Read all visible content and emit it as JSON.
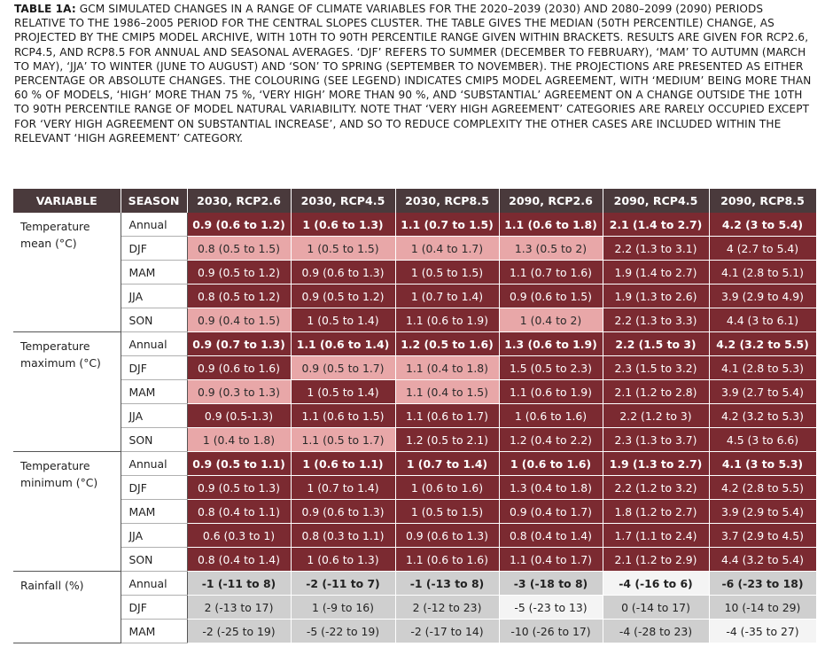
{
  "caption": {
    "label": "TABLE 1A:",
    "text": " GCM SIMULATED CHANGES IN A RANGE OF CLIMATE VARIABLES FOR THE 2020–2039 (2030) AND 2080–2099 (2090) PERIODS RELATIVE TO THE 1986–2005 PERIOD FOR THE CENTRAL SLOPES CLUSTER. THE TABLE GIVES THE MEDIAN (50TH PERCENTILE) CHANGE, AS PROJECTED BY THE CMIP5 MODEL ARCHIVE, WITH 10TH TO 90TH PERCENTILE RANGE GIVEN WITHIN BRACKETS. RESULTS ARE GIVEN FOR RCP2.6, RCP4.5, AND RCP8.5 FOR ANNUAL AND SEASONAL AVERAGES. ‘DJF’ REFERS TO SUMMER (DECEMBER TO FEBRUARY), ‘MAM’ TO AUTUMN (MARCH TO MAY), ‘JJA’ TO WINTER (JUNE TO AUGUST) AND ‘SON’ TO SPRING (SEPTEMBER TO NOVEMBER). THE PROJECTIONS ARE PRESENTED AS EITHER PERCENTAGE OR ABSOLUTE CHANGES. THE COLOURING (SEE LEGEND) INDICATES CMIP5 MODEL AGREEMENT, WITH ‘MEDIUM’ BEING MORE THAN 60 % OF MODELS, ‘HIGH’ MORE THAN 75 %, ‘VERY HIGH’ MORE THAN 90 %, AND ‘SUBSTANTIAL’ AGREEMENT ON A CHANGE OUTSIDE THE 10TH TO 90TH PERCENTILE RANGE OF MODEL NATURAL VARIABILITY. NOTE THAT ‘VERY HIGH AGREEMENT’ CATEGORIES ARE RARELY OCCUPIED EXCEPT FOR ‘VERY HIGH AGREEMENT ON SUBSTANTIAL INCREASE’, AND SO TO REDUCE COMPLEXITY THE OTHER CASES ARE INCLUDED WITHIN THE RELEVANT ‘HIGH AGREEMENT’ CATEGORY."
  },
  "headers": [
    "VARIABLE",
    "SEASON",
    "2030, RCP2.6",
    "2030, RCP4.5",
    "2030, RCP8.5",
    "2090, RCP2.6",
    "2090, RCP4.5",
    "2090, RCP8.5"
  ],
  "colors": {
    "header": "#4a3a3c",
    "high_agreement": "#7b2a31",
    "medium_agreement": "#e8a7a8",
    "low_agreement": "#cfcfcf",
    "near_zero": "#f4f4f4"
  },
  "groups": [
    {
      "variable": "Temperature mean (°C)",
      "rows": [
        {
          "season": "Annual",
          "bold": true,
          "cells": [
            [
              "0.9 (0.6 to 1.2)",
              "dk"
            ],
            [
              "1 (0.6 to 1.3)",
              "dk"
            ],
            [
              "1.1 (0.7 to 1.5)",
              "dk"
            ],
            [
              "1.1 (0.6 to 1.8)",
              "dk"
            ],
            [
              "2.1 (1.4 to 2.7)",
              "dk"
            ],
            [
              "4.2 (3 to 5.4)",
              "dk"
            ]
          ]
        },
        {
          "season": "DJF",
          "cells": [
            [
              "0.8 (0.5 to 1.5)",
              "lt"
            ],
            [
              "1 (0.5 to 1.5)",
              "lt"
            ],
            [
              "1 (0.4 to 1.7)",
              "lt"
            ],
            [
              "1.3 (0.5 to 2)",
              "lt"
            ],
            [
              "2.2 (1.3 to 3.1)",
              "dk"
            ],
            [
              "4 (2.7 to 5.4)",
              "dk"
            ]
          ]
        },
        {
          "season": "MAM",
          "cells": [
            [
              "0.9 (0.5 to 1.2)",
              "dk"
            ],
            [
              "0.9 (0.6 to 1.3)",
              "dk"
            ],
            [
              "1 (0.5 to 1.5)",
              "dk"
            ],
            [
              "1.1 (0.7 to 1.6)",
              "dk"
            ],
            [
              "1.9 (1.4 to 2.7)",
              "dk"
            ],
            [
              "4.1 (2.8 to 5.1)",
              "dk"
            ]
          ]
        },
        {
          "season": "JJA",
          "cells": [
            [
              "0.8 (0.5 to 1.2)",
              "dk"
            ],
            [
              "0.9 (0.5 to 1.2)",
              "dk"
            ],
            [
              "1 (0.7 to 1.4)",
              "dk"
            ],
            [
              "0.9 (0.6 to 1.5)",
              "dk"
            ],
            [
              "1.9 (1.3 to 2.6)",
              "dk"
            ],
            [
              "3.9 (2.9 to 4.9)",
              "dk"
            ]
          ]
        },
        {
          "season": "SON",
          "cells": [
            [
              "0.9 (0.4 to 1.5)",
              "lt"
            ],
            [
              "1 (0.5 to 1.4)",
              "dk"
            ],
            [
              "1.1 (0.6 to 1.9)",
              "dk"
            ],
            [
              "1 (0.4 to 2)",
              "lt"
            ],
            [
              "2.2 (1.3 to 3.3)",
              "dk"
            ],
            [
              "4.4 (3 to 6.1)",
              "dk"
            ]
          ]
        }
      ]
    },
    {
      "variable": "Temperature maximum (°C)",
      "rows": [
        {
          "season": "Annual",
          "bold": true,
          "cells": [
            [
              "0.9 (0.7 to 1.3)",
              "dk"
            ],
            [
              "1.1 (0.6 to 1.4)",
              "dk"
            ],
            [
              "1.2 (0.5 to 1.6)",
              "dk"
            ],
            [
              "1.3 (0.6 to 1.9)",
              "dk"
            ],
            [
              "2.2 (1.5 to 3)",
              "dk"
            ],
            [
              "4.2 (3.2 to 5.5)",
              "dk"
            ]
          ]
        },
        {
          "season": "DJF",
          "cells": [
            [
              "0.9 (0.6 to 1.6)",
              "dk"
            ],
            [
              "0.9 (0.5 to 1.7)",
              "lt"
            ],
            [
              "1.1 (0.4 to 1.8)",
              "lt"
            ],
            [
              "1.5 (0.5 to 2.3)",
              "dk"
            ],
            [
              "2.3 (1.5 to 3.2)",
              "dk"
            ],
            [
              "4.1 (2.8 to 5.3)",
              "dk"
            ]
          ]
        },
        {
          "season": "MAM",
          "cells": [
            [
              "0.9 (0.3 to 1.3)",
              "lt"
            ],
            [
              "1 (0.5 to 1.4)",
              "dk"
            ],
            [
              "1.1 (0.4 to 1.5)",
              "lt"
            ],
            [
              "1.1 (0.6 to 1.9)",
              "dk"
            ],
            [
              "2.1 (1.2 to 2.8)",
              "dk"
            ],
            [
              "3.9 (2.7 to 5.4)",
              "dk"
            ]
          ]
        },
        {
          "season": "JJA",
          "cells": [
            [
              "0.9 (0.5-1.3)",
              "dk"
            ],
            [
              "1.1 (0.6 to 1.5)",
              "dk"
            ],
            [
              "1.1 (0.6 to 1.7)",
              "dk"
            ],
            [
              "1 (0.6 to 1.6)",
              "dk"
            ],
            [
              "2.2 (1.2 to 3)",
              "dk"
            ],
            [
              "4.2 (3.2 to 5.3)",
              "dk"
            ]
          ]
        },
        {
          "season": "SON",
          "cells": [
            [
              "1 (0.4 to 1.8)",
              "lt"
            ],
            [
              "1.1 (0.5 to 1.7)",
              "lt"
            ],
            [
              "1.2 (0.5 to 2.1)",
              "dk"
            ],
            [
              "1.2 (0.4 to 2.2)",
              "dk"
            ],
            [
              "2.3 (1.3 to 3.7)",
              "dk"
            ],
            [
              "4.5 (3 to 6.6)",
              "dk"
            ]
          ]
        }
      ]
    },
    {
      "variable": "Temperature minimum (°C)",
      "rows": [
        {
          "season": "Annual",
          "bold": true,
          "cells": [
            [
              "0.9 (0.5 to 1.1)",
              "dk"
            ],
            [
              "1 (0.6 to 1.1)",
              "dk"
            ],
            [
              "1 (0.7 to 1.4)",
              "dk"
            ],
            [
              "1 (0.6 to 1.6)",
              "dk"
            ],
            [
              "1.9 (1.3 to 2.7)",
              "dk"
            ],
            [
              "4.1 (3 to 5.3)",
              "dk"
            ]
          ]
        },
        {
          "season": "DJF",
          "cells": [
            [
              "0.9 (0.5 to 1.3)",
              "dk"
            ],
            [
              "1 (0.7 to 1.4)",
              "dk"
            ],
            [
              "1 (0.6 to 1.6)",
              "dk"
            ],
            [
              "1.3 (0.4 to 1.8)",
              "dk"
            ],
            [
              "2.2 (1.2 to 3.2)",
              "dk"
            ],
            [
              "4.2 (2.8 to 5.5)",
              "dk"
            ]
          ]
        },
        {
          "season": "MAM",
          "cells": [
            [
              "0.8 (0.4 to 1.1)",
              "dk"
            ],
            [
              "0.9 (0.6 to 1.3)",
              "dk"
            ],
            [
              "1 (0.5 to 1.5)",
              "dk"
            ],
            [
              "0.9 (0.4 to 1.7)",
              "dk"
            ],
            [
              "1.8 (1.2 to 2.7)",
              "dk"
            ],
            [
              "3.9 (2.9 to 5.4)",
              "dk"
            ]
          ]
        },
        {
          "season": "JJA",
          "cells": [
            [
              "0.6 (0.3 to 1)",
              "dk"
            ],
            [
              "0.8 (0.3 to 1.1)",
              "dk"
            ],
            [
              "0.9 (0.6 to 1.3)",
              "dk"
            ],
            [
              "0.8 (0.4 to 1.4)",
              "dk"
            ],
            [
              "1.7 (1.1 to 2.4)",
              "dk"
            ],
            [
              "3.7 (2.9 to 4.5)",
              "dk"
            ]
          ]
        },
        {
          "season": "SON",
          "cells": [
            [
              "0.8 (0.4 to 1.4)",
              "dk"
            ],
            [
              "1 (0.6 to 1.3)",
              "dk"
            ],
            [
              "1.1 (0.6 to 1.6)",
              "dk"
            ],
            [
              "1.1 (0.4 to 1.7)",
              "dk"
            ],
            [
              "2.1 (1.2 to 2.9)",
              "dk"
            ],
            [
              "4.4 (3.2 to 5.4)",
              "dk"
            ]
          ]
        }
      ]
    },
    {
      "variable": "Rainfall (%)",
      "rows": [
        {
          "season": "Annual",
          "bold": true,
          "cells": [
            [
              "-1 (-11 to 8)",
              "gy"
            ],
            [
              "-2 (-11 to 7)",
              "gy"
            ],
            [
              "-1 (-13 to 8)",
              "gy"
            ],
            [
              "-3 (-18 to 8)",
              "gy"
            ],
            [
              "-4 (-16 to 6)",
              "wt"
            ],
            [
              "-6 (-23 to 18)",
              "gy"
            ]
          ]
        },
        {
          "season": "DJF",
          "cells": [
            [
              "2 (-13 to 17)",
              "gy"
            ],
            [
              "1 (-9 to 16)",
              "gy"
            ],
            [
              "2 (-12 to 23)",
              "gy"
            ],
            [
              "-5 (-23 to 13)",
              "wt"
            ],
            [
              "0 (-14 to 17)",
              "gy"
            ],
            [
              "10 (-14 to 29)",
              "gy"
            ]
          ]
        },
        {
          "season": "MAM",
          "cells": [
            [
              "-2 (-25 to 19)",
              "gy"
            ],
            [
              "-5 (-22 to 19)",
              "gy"
            ],
            [
              "-2 (-17 to 14)",
              "gy"
            ],
            [
              "-10 (-26 to 17)",
              "gy"
            ],
            [
              "-4 (-28 to 23)",
              "gy"
            ],
            [
              "-4 (-35 to 27)",
              "wt"
            ]
          ]
        }
      ]
    }
  ]
}
